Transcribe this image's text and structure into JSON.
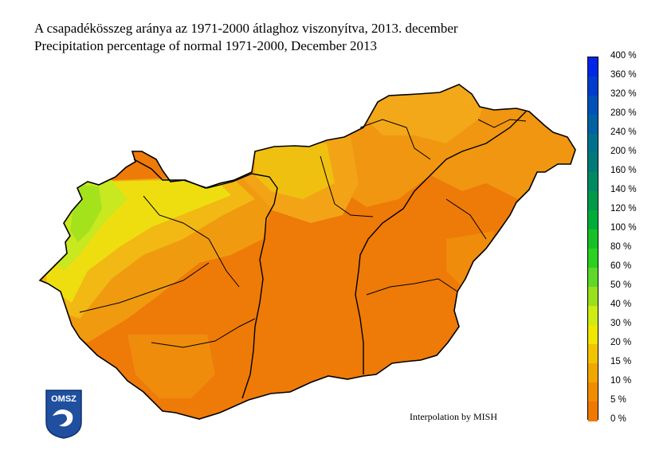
{
  "title_hu": "A csapadékösszeg aránya az 1971-2000 átlaghoz viszonyítva, 2013. december",
  "title_en": "Precipitation percentage of normal 1971-2000, December 2013",
  "credit": "Interpolation by MISH",
  "logo_text": "OMSZ",
  "legend": {
    "labels": [
      "400 %",
      "360 %",
      "320 %",
      "280 %",
      "240 %",
      "200 %",
      "160 %",
      "140 %",
      "120 %",
      "100 %",
      "80 %",
      "60 %",
      "50 %",
      "40 %",
      "30 %",
      "20 %",
      "15 %",
      "10 %",
      "5 %",
      "0 %"
    ],
    "colors": [
      "#0026e6",
      "#003dcc",
      "#0052b8",
      "#0062a3",
      "#00718c",
      "#007a78",
      "#008a62",
      "#009a4a",
      "#00ad3a",
      "#18c028",
      "#2bd11f",
      "#5fd82a",
      "#99e01f",
      "#ccec12",
      "#f0e600",
      "#f2c400",
      "#f0a800",
      "#f08c00",
      "#ee7800"
    ]
  },
  "colors": {
    "land_base": "#ee7a08",
    "border": "#000000",
    "logo_blue": "#1f4f9e"
  }
}
